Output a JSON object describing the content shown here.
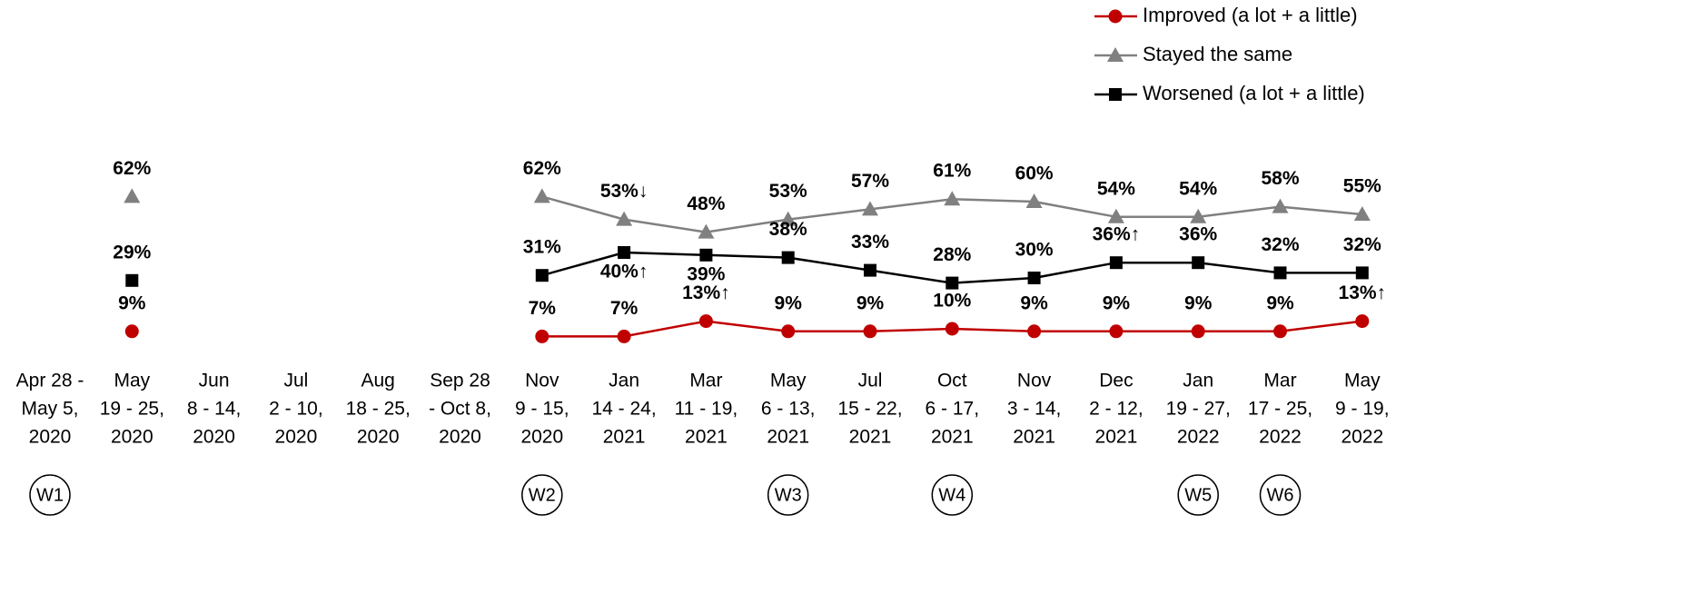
{
  "chart_data": {
    "type": "line",
    "categories": [
      [
        "Apr 28 -",
        "May 5,",
        "2020"
      ],
      [
        "May",
        "19 - 25,",
        "2020"
      ],
      [
        "Jun",
        "8 - 14,",
        "2020"
      ],
      [
        "Jul",
        "2 - 10,",
        "2020"
      ],
      [
        "Aug",
        "18 - 25,",
        "2020"
      ],
      [
        "Sep 28",
        "- Oct 8,",
        "2020"
      ],
      [
        "Nov",
        "9 - 15,",
        "2020"
      ],
      [
        "Jan",
        "14 - 24,",
        "2021"
      ],
      [
        "Mar",
        "11 - 19,",
        "2021"
      ],
      [
        "May",
        "6 - 13,",
        "2021"
      ],
      [
        "Jul",
        "15 - 22,",
        "2021"
      ],
      [
        "Oct",
        "6 - 17,",
        "2021"
      ],
      [
        "Nov",
        "3 - 14,",
        "2021"
      ],
      [
        "Dec",
        "2 - 12,",
        "2021"
      ],
      [
        "Jan",
        "19 - 27,",
        "2022"
      ],
      [
        "Mar",
        "17 - 25,",
        "2022"
      ],
      [
        "May",
        "9 - 19,",
        "2022"
      ]
    ],
    "waves": [
      "W1",
      null,
      null,
      null,
      null,
      null,
      "W2",
      null,
      null,
      "W3",
      null,
      "W4",
      null,
      null,
      "W5",
      "W6",
      null
    ],
    "series": [
      {
        "name": "Improved (a lot + a little)",
        "color": "#c00000",
        "marker": "circle",
        "values": [
          null,
          9,
          null,
          null,
          null,
          null,
          7,
          7,
          13,
          9,
          9,
          10,
          9,
          9,
          9,
          9,
          13
        ],
        "value_labels": [
          null,
          "9%",
          null,
          null,
          null,
          null,
          "7%",
          "7%",
          "13%↑",
          "9%",
          "9%",
          "10%",
          "9%",
          "9%",
          "9%",
          "9%",
          "13%↑"
        ]
      },
      {
        "name": "Stayed the same",
        "color": "#808080",
        "marker": "triangle",
        "values": [
          null,
          62,
          null,
          null,
          null,
          null,
          62,
          53,
          48,
          53,
          57,
          61,
          60,
          54,
          54,
          58,
          55
        ],
        "value_labels": [
          null,
          "62%",
          null,
          null,
          null,
          null,
          "62%",
          "53%↓",
          "48%",
          "53%",
          "57%",
          "61%",
          "60%",
          "54%",
          "54%",
          "58%",
          "55%"
        ]
      },
      {
        "name": "Worsened (a lot + a little)",
        "color": "#000000",
        "marker": "square",
        "values": [
          null,
          29,
          null,
          null,
          null,
          null,
          31,
          40,
          39,
          38,
          33,
          28,
          30,
          36,
          36,
          32,
          32
        ],
        "value_labels": [
          null,
          "29%",
          null,
          null,
          null,
          null,
          "31%",
          "40%↑",
          "39%",
          "38%",
          "33%",
          "28%",
          "30%",
          "36%↑",
          "36%",
          "32%",
          "32%"
        ]
      }
    ]
  }
}
